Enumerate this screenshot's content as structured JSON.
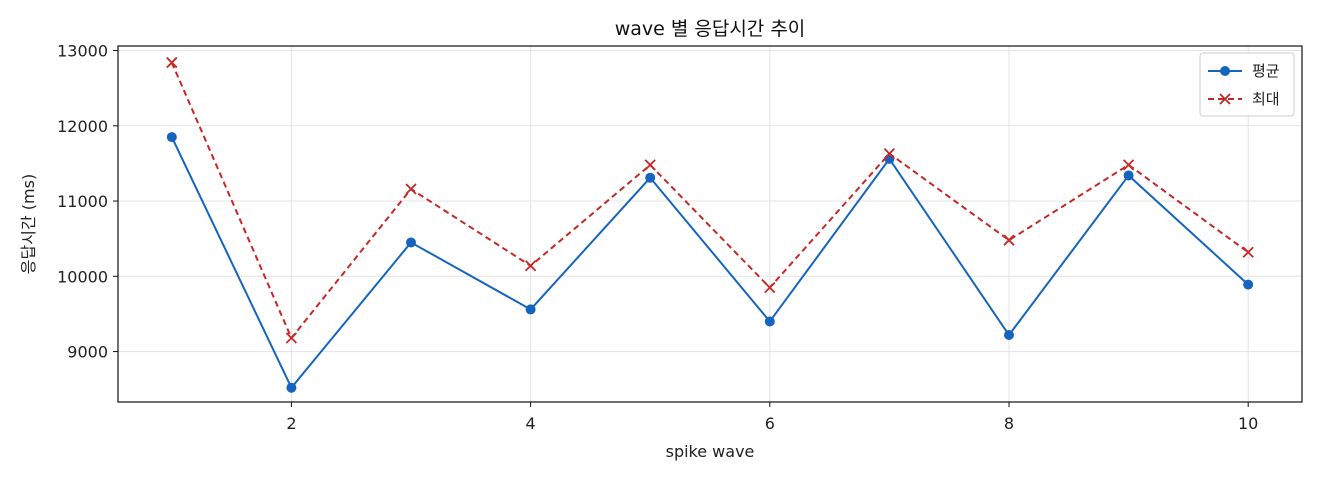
{
  "chart_data": {
    "type": "line",
    "title": "wave 별 응답시간 추이",
    "xlabel": "spike wave",
    "ylabel": "응답시간 (ms)",
    "x": [
      1,
      2,
      3,
      4,
      5,
      6,
      7,
      8,
      9,
      10
    ],
    "xlim": [
      0.55,
      10.45
    ],
    "ylim": [
      8330,
      13060
    ],
    "xticks": [
      2,
      4,
      6,
      8,
      10
    ],
    "yticks": [
      9000,
      10000,
      11000,
      12000,
      13000
    ],
    "grid": true,
    "legend_position": "top-right",
    "series": [
      {
        "name": "평균",
        "color": "#1565c0",
        "line_style": "solid",
        "marker": "circle",
        "values": [
          11850,
          8520,
          10450,
          9560,
          11310,
          9400,
          11560,
          9220,
          11340,
          9890
        ]
      },
      {
        "name": "최대",
        "color": "#c62828",
        "line_style": "dashed",
        "marker": "x",
        "values": [
          12840,
          9180,
          11160,
          10140,
          11480,
          9850,
          11630,
          10480,
          11480,
          10320
        ]
      }
    ]
  }
}
